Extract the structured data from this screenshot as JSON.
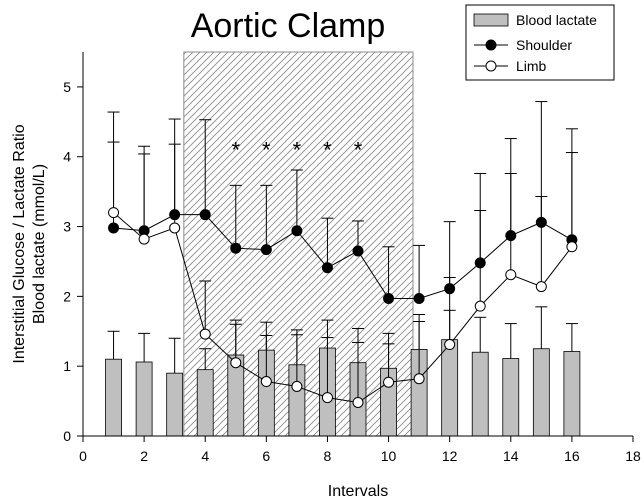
{
  "chart_data": {
    "type": "bar+line",
    "title": "Aortic Clamp",
    "xlabel": "Intervals",
    "ylabel_line1": "Interstitial Glucose / Lactate Ratio",
    "ylabel_line2": "Blood lactate (mmol/L)",
    "xlim": [
      0,
      18
    ],
    "ylim": [
      0,
      5.5
    ],
    "xticks": [
      0,
      2,
      4,
      6,
      8,
      10,
      12,
      14,
      16,
      18
    ],
    "yticks": [
      0,
      1,
      2,
      3,
      4,
      5
    ],
    "clamp_region": {
      "x_start": 3.3,
      "x_end": 10.8
    },
    "significance_marks": {
      "symbol": "*",
      "x": [
        5,
        6,
        7,
        8,
        9
      ],
      "y": 4.1
    },
    "legend": {
      "position": "top-right",
      "entries": [
        "Blood lactate",
        "Shoulder",
        "Limb"
      ]
    },
    "series": [
      {
        "name": "Blood lactate",
        "kind": "bar",
        "color": "#bfbfbf",
        "x": [
          1,
          2,
          3,
          4,
          5,
          6,
          7,
          8,
          9,
          10,
          11,
          12,
          13,
          14,
          15,
          16
        ],
        "values": [
          1.1,
          1.06,
          0.9,
          0.95,
          1.16,
          1.23,
          1.02,
          1.26,
          1.05,
          0.97,
          1.24,
          1.38,
          1.2,
          1.11,
          1.25,
          1.21
        ],
        "error": [
          0.4,
          0.41,
          0.5,
          0.3,
          0.5,
          0.4,
          0.5,
          0.4,
          0.49,
          0.5,
          0.4,
          0.42,
          0.5,
          0.5,
          0.6,
          0.4
        ]
      },
      {
        "name": "Shoulder",
        "kind": "line",
        "marker": "filled-circle",
        "color": "#000000",
        "x": [
          1,
          2,
          3,
          4,
          5,
          6,
          7,
          8,
          9,
          10,
          11,
          12,
          13,
          14,
          15,
          16
        ],
        "values": [
          2.98,
          2.94,
          3.17,
          3.17,
          2.69,
          2.67,
          2.94,
          2.41,
          2.65,
          1.97,
          1.97,
          2.11,
          2.48,
          2.87,
          3.06,
          2.81
        ],
        "error": [
          1.66,
          1.21,
          1.37,
          1.36,
          0.9,
          0.92,
          0.87,
          0.71,
          0.43,
          0.74,
          0.76,
          0.96,
          1.28,
          1.39,
          1.73,
          1.59
        ]
      },
      {
        "name": "Limb",
        "kind": "line",
        "marker": "open-circle",
        "color": "#000000",
        "x": [
          1,
          2,
          3,
          4,
          5,
          6,
          7,
          8,
          9,
          10,
          11,
          12,
          13,
          14,
          15,
          16
        ],
        "values": [
          3.2,
          2.82,
          2.98,
          1.46,
          1.05,
          0.78,
          0.71,
          0.55,
          0.48,
          0.77,
          0.82,
          1.31,
          1.86,
          2.31,
          2.14,
          2.71
        ],
        "error": [
          1.01,
          1.22,
          1.2,
          0.76,
          0.55,
          0.66,
          0.74,
          0.86,
          0.86,
          0.55,
          0.92,
          0.96,
          1.37,
          1.45,
          1.29,
          1.35
        ]
      }
    ]
  }
}
